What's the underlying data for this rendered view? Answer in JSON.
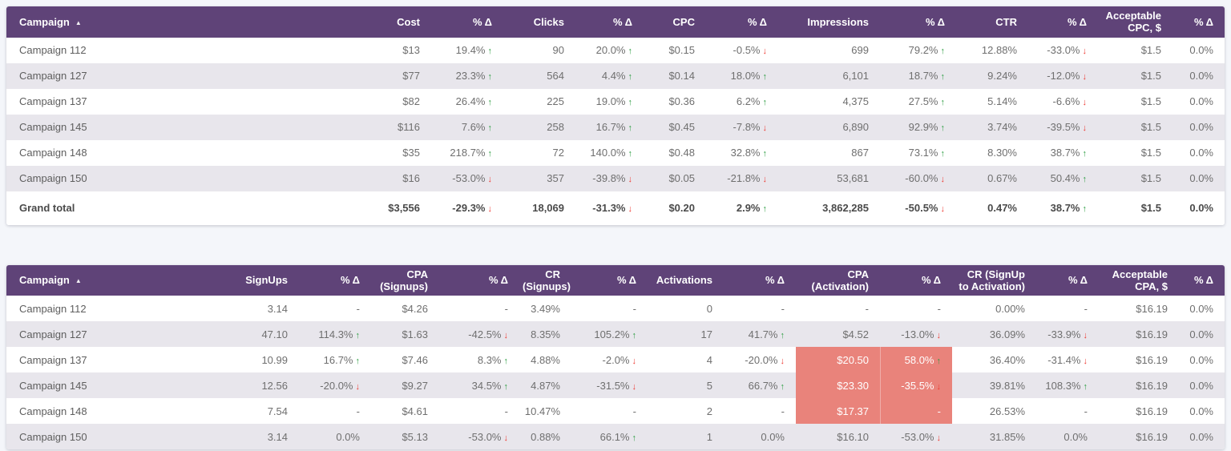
{
  "colors": {
    "header_bg": "#5f4378",
    "stripe_bg": "#e8e6ec",
    "highlight_cell_bg": "#e9837b",
    "positive_arrow": "#2f9e44",
    "negative_arrow": "#ee3d35",
    "page_bg": "#f4f6fa"
  },
  "icons": {
    "sort_ascending": "▲",
    "arrow_up": "↑",
    "arrow_down": "↓"
  },
  "tables": [
    {
      "id": "traffic",
      "sort_column": "Campaign",
      "sort_direction": "asc",
      "columns": [
        "Campaign",
        "Cost",
        "% Δ",
        "Clicks",
        "% Δ",
        "CPC",
        "% Δ",
        "Impressions",
        "% Δ",
        "CTR",
        "% Δ",
        "Acceptable\nCPC, $",
        "% Δ"
      ],
      "rows": [
        {
          "name": "Campaign 112",
          "cells": [
            {
              "t": "$13"
            },
            {
              "t": "19.4%",
              "a": "up"
            },
            {
              "t": "90"
            },
            {
              "t": "20.0%",
              "a": "up"
            },
            {
              "t": "$0.15"
            },
            {
              "t": "-0.5%",
              "a": "down"
            },
            {
              "t": "699"
            },
            {
              "t": "79.2%",
              "a": "up"
            },
            {
              "t": "12.88%"
            },
            {
              "t": "-33.0%",
              "a": "down"
            },
            {
              "t": "$1.5"
            },
            {
              "t": "0.0%"
            }
          ]
        },
        {
          "name": "Campaign 127",
          "cells": [
            {
              "t": "$77"
            },
            {
              "t": "23.3%",
              "a": "up"
            },
            {
              "t": "564"
            },
            {
              "t": "4.4%",
              "a": "up"
            },
            {
              "t": "$0.14"
            },
            {
              "t": "18.0%",
              "a": "up"
            },
            {
              "t": "6,101"
            },
            {
              "t": "18.7%",
              "a": "up"
            },
            {
              "t": "9.24%"
            },
            {
              "t": "-12.0%",
              "a": "down"
            },
            {
              "t": "$1.5"
            },
            {
              "t": "0.0%"
            }
          ]
        },
        {
          "name": "Campaign 137",
          "cells": [
            {
              "t": "$82"
            },
            {
              "t": "26.4%",
              "a": "up"
            },
            {
              "t": "225"
            },
            {
              "t": "19.0%",
              "a": "up"
            },
            {
              "t": "$0.36"
            },
            {
              "t": "6.2%",
              "a": "up"
            },
            {
              "t": "4,375"
            },
            {
              "t": "27.5%",
              "a": "up"
            },
            {
              "t": "5.14%"
            },
            {
              "t": "-6.6%",
              "a": "down"
            },
            {
              "t": "$1.5"
            },
            {
              "t": "0.0%"
            }
          ]
        },
        {
          "name": "Campaign 145",
          "cells": [
            {
              "t": "$116"
            },
            {
              "t": "7.6%",
              "a": "up"
            },
            {
              "t": "258"
            },
            {
              "t": "16.7%",
              "a": "up"
            },
            {
              "t": "$0.45"
            },
            {
              "t": "-7.8%",
              "a": "down"
            },
            {
              "t": "6,890"
            },
            {
              "t": "92.9%",
              "a": "up"
            },
            {
              "t": "3.74%"
            },
            {
              "t": "-39.5%",
              "a": "down"
            },
            {
              "t": "$1.5"
            },
            {
              "t": "0.0%"
            }
          ]
        },
        {
          "name": "Campaign 148",
          "cells": [
            {
              "t": "$35"
            },
            {
              "t": "218.7%",
              "a": "up"
            },
            {
              "t": "72"
            },
            {
              "t": "140.0%",
              "a": "up"
            },
            {
              "t": "$0.48"
            },
            {
              "t": "32.8%",
              "a": "up"
            },
            {
              "t": "867"
            },
            {
              "t": "73.1%",
              "a": "up"
            },
            {
              "t": "8.30%"
            },
            {
              "t": "38.7%",
              "a": "up"
            },
            {
              "t": "$1.5"
            },
            {
              "t": "0.0%"
            }
          ]
        },
        {
          "name": "Campaign 150",
          "cells": [
            {
              "t": "$16"
            },
            {
              "t": "-53.0%",
              "a": "down"
            },
            {
              "t": "357"
            },
            {
              "t": "-39.8%",
              "a": "down"
            },
            {
              "t": "$0.05"
            },
            {
              "t": "-21.8%",
              "a": "down"
            },
            {
              "t": "53,681"
            },
            {
              "t": "-60.0%",
              "a": "down"
            },
            {
              "t": "0.67%"
            },
            {
              "t": "50.4%",
              "a": "up"
            },
            {
              "t": "$1.5"
            },
            {
              "t": "0.0%"
            }
          ]
        }
      ],
      "total": {
        "name": "Grand total",
        "cells": [
          {
            "t": "$3,556"
          },
          {
            "t": "-29.3%",
            "a": "down"
          },
          {
            "t": "18,069"
          },
          {
            "t": "-31.3%",
            "a": "down"
          },
          {
            "t": "$0.20"
          },
          {
            "t": "2.9%",
            "a": "up"
          },
          {
            "t": "3,862,285"
          },
          {
            "t": "-50.5%",
            "a": "down"
          },
          {
            "t": "0.47%"
          },
          {
            "t": "38.7%",
            "a": "up"
          },
          {
            "t": "$1.5"
          },
          {
            "t": "0.0%"
          }
        ]
      }
    },
    {
      "id": "conversion",
      "sort_column": "Campaign",
      "sort_direction": "asc",
      "columns": [
        "Campaign",
        "SignUps",
        "% Δ",
        "CPA\n(Signups)",
        "% Δ",
        "CR\n(Signups)",
        "% Δ",
        "Activations",
        "% Δ",
        "CPA\n(Activation)",
        "% Δ",
        "CR (SignUp\nto Activation)",
        "% Δ",
        "Acceptable\nCPA, $",
        "% Δ"
      ],
      "rows": [
        {
          "name": "Campaign 112",
          "cells": [
            {
              "t": "3.14"
            },
            {
              "t": "-"
            },
            {
              "t": "$4.26"
            },
            {
              "t": "-"
            },
            {
              "t": "3.49%"
            },
            {
              "t": "-"
            },
            {
              "t": "0"
            },
            {
              "t": "-"
            },
            {
              "t": "-"
            },
            {
              "t": "-"
            },
            {
              "t": "0.00%"
            },
            {
              "t": "-"
            },
            {
              "t": "$16.19"
            },
            {
              "t": "0.0%"
            }
          ]
        },
        {
          "name": "Campaign 127",
          "cells": [
            {
              "t": "47.10"
            },
            {
              "t": "114.3%",
              "a": "up"
            },
            {
              "t": "$1.63"
            },
            {
              "t": "-42.5%",
              "a": "down"
            },
            {
              "t": "8.35%"
            },
            {
              "t": "105.2%",
              "a": "up"
            },
            {
              "t": "17"
            },
            {
              "t": "41.7%",
              "a": "up"
            },
            {
              "t": "$4.52"
            },
            {
              "t": "-13.0%",
              "a": "down"
            },
            {
              "t": "36.09%"
            },
            {
              "t": "-33.9%",
              "a": "down"
            },
            {
              "t": "$16.19"
            },
            {
              "t": "0.0%"
            }
          ]
        },
        {
          "name": "Campaign 137",
          "cells": [
            {
              "t": "10.99"
            },
            {
              "t": "16.7%",
              "a": "up"
            },
            {
              "t": "$7.46"
            },
            {
              "t": "8.3%",
              "a": "up"
            },
            {
              "t": "4.88%"
            },
            {
              "t": "-2.0%",
              "a": "down"
            },
            {
              "t": "4"
            },
            {
              "t": "-20.0%",
              "a": "down"
            },
            {
              "t": "$20.50",
              "hl": true
            },
            {
              "t": "58.0%",
              "a": "up",
              "hl": true
            },
            {
              "t": "36.40%"
            },
            {
              "t": "-31.4%",
              "a": "down"
            },
            {
              "t": "$16.19"
            },
            {
              "t": "0.0%"
            }
          ]
        },
        {
          "name": "Campaign 145",
          "cells": [
            {
              "t": "12.56"
            },
            {
              "t": "-20.0%",
              "a": "down"
            },
            {
              "t": "$9.27"
            },
            {
              "t": "34.5%",
              "a": "up"
            },
            {
              "t": "4.87%"
            },
            {
              "t": "-31.5%",
              "a": "down"
            },
            {
              "t": "5"
            },
            {
              "t": "66.7%",
              "a": "up"
            },
            {
              "t": "$23.30",
              "hl": true
            },
            {
              "t": "-35.5%",
              "a": "down",
              "hl": true
            },
            {
              "t": "39.81%"
            },
            {
              "t": "108.3%",
              "a": "up"
            },
            {
              "t": "$16.19"
            },
            {
              "t": "0.0%"
            }
          ]
        },
        {
          "name": "Campaign 148",
          "cells": [
            {
              "t": "7.54"
            },
            {
              "t": "-"
            },
            {
              "t": "$4.61"
            },
            {
              "t": "-"
            },
            {
              "t": "10.47%"
            },
            {
              "t": "-"
            },
            {
              "t": "2"
            },
            {
              "t": "-"
            },
            {
              "t": "$17.37",
              "hl": true
            },
            {
              "t": "-",
              "hl": true
            },
            {
              "t": "26.53%"
            },
            {
              "t": "-"
            },
            {
              "t": "$16.19"
            },
            {
              "t": "0.0%"
            }
          ]
        },
        {
          "name": "Campaign 150",
          "cells": [
            {
              "t": "3.14"
            },
            {
              "t": "0.0%"
            },
            {
              "t": "$5.13"
            },
            {
              "t": "-53.0%",
              "a": "down"
            },
            {
              "t": "0.88%"
            },
            {
              "t": "66.1%",
              "a": "up"
            },
            {
              "t": "1"
            },
            {
              "t": "0.0%"
            },
            {
              "t": "$16.10"
            },
            {
              "t": "-53.0%",
              "a": "down"
            },
            {
              "t": "31.85%"
            },
            {
              "t": "0.0%"
            },
            {
              "t": "$16.19"
            },
            {
              "t": "0.0%"
            }
          ]
        }
      ]
    }
  ]
}
